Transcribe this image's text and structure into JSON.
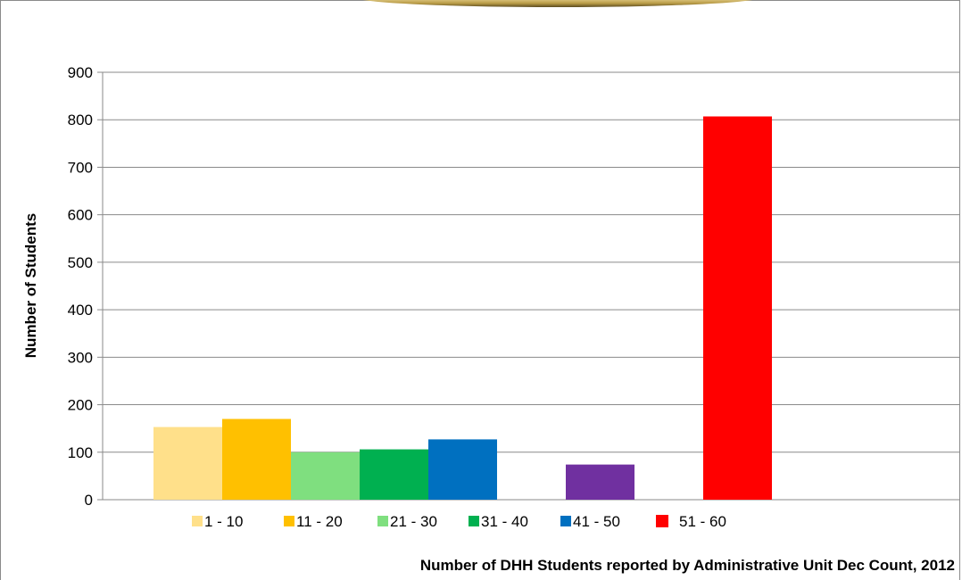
{
  "chart_data": {
    "type": "bar",
    "xlabel": "Number of DHH Students reported by Administrative Unit Dec Count, 2012",
    "ylabel": "Number of Students",
    "ylim": [
      0,
      900
    ],
    "yticks": [
      "0",
      "100",
      "200",
      "300",
      "400",
      "500",
      "600",
      "700",
      "800",
      "900"
    ],
    "grid": true,
    "legend_position": "bottom",
    "bars": [
      {
        "value": 153,
        "color": "#FFE08A"
      },
      {
        "value": 170,
        "color": "#FFC000"
      },
      {
        "value": 100,
        "color": "#7FDF7F"
      },
      {
        "value": 106,
        "color": "#00B050"
      },
      {
        "value": 127,
        "color": "#0070C0"
      },
      {
        "value": 0,
        "color": "#FFFFFF"
      },
      {
        "value": 74,
        "color": "#7030A0"
      },
      {
        "value": 0,
        "color": "#FFFFFF"
      },
      {
        "value": 807,
        "color": "#FF0000"
      }
    ],
    "legend": [
      {
        "label": "1 - 10",
        "color": "#FFE08A"
      },
      {
        "label": "11 - 20",
        "color": "#FFC000"
      },
      {
        "label": "21 - 30",
        "color": "#7FDF7F"
      },
      {
        "label": "31 - 40",
        "color": "#00B050"
      },
      {
        "label": "41 - 50",
        "color": "#0070C0"
      },
      {
        "label": "51 - 60",
        "color": "#FF0000"
      }
    ]
  }
}
